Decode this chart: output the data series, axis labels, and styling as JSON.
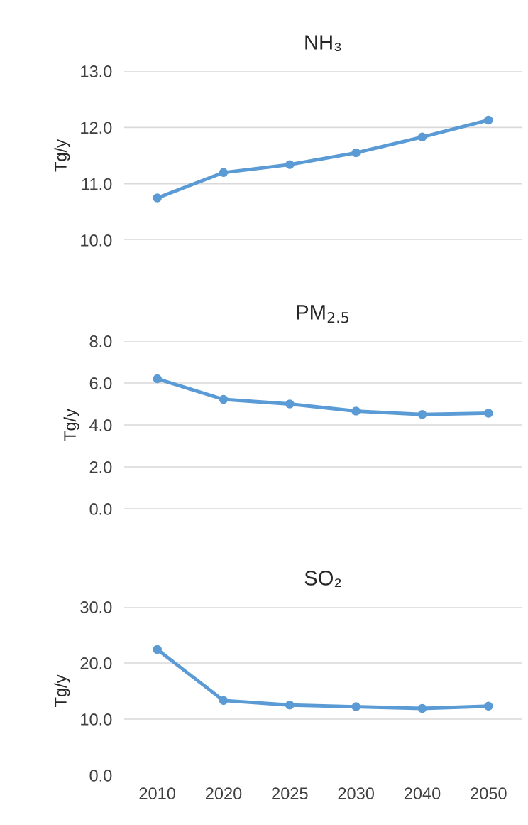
{
  "chart_data": [
    {
      "type": "line",
      "title": "NH₃",
      "ylabel": "Tg/y",
      "categories": [
        "2010",
        "2020",
        "2025",
        "2030",
        "2040",
        "2050"
      ],
      "series": [
        {
          "color": "#5b9bd5",
          "values": [
            10.75,
            11.2,
            11.34,
            11.55,
            11.83,
            12.13
          ]
        }
      ],
      "ylim": [
        10,
        13
      ],
      "yticks": [
        {
          "value": 10,
          "label": "10.0"
        },
        {
          "value": 11,
          "label": "11.0"
        },
        {
          "value": 12,
          "label": "12.0"
        },
        {
          "value": 13,
          "label": "13.0"
        }
      ],
      "grid": "y",
      "marker": "circle",
      "line_style": "solid",
      "tick_labels": "y"
    },
    {
      "type": "line",
      "title": "PM$_{2.5}$",
      "ylabel": "Tg/y",
      "categories": [
        "2010",
        "2020",
        "2025",
        "2030",
        "2040",
        "2050"
      ],
      "series": [
        {
          "color": "#5b9bd5",
          "values": [
            6.2,
            5.22,
            5.0,
            4.66,
            4.5,
            4.56
          ]
        }
      ],
      "ylim": [
        0,
        8
      ],
      "yticks": [
        {
          "value": 0,
          "label": "0.0"
        },
        {
          "value": 2,
          "label": "2.0"
        },
        {
          "value": 4,
          "label": "4.0"
        },
        {
          "value": 6,
          "label": "6.0"
        },
        {
          "value": 8,
          "label": "8.0"
        }
      ],
      "grid": "y",
      "marker": "circle",
      "line_style": "solid",
      "tick_labels": "y"
    },
    {
      "type": "line",
      "title": "SO₂",
      "ylabel": "Tg/y",
      "categories": [
        "2010",
        "2020",
        "2025",
        "2030",
        "2040",
        "2050"
      ],
      "series": [
        {
          "color": "#5b9bd5",
          "values": [
            22.4,
            13.3,
            12.5,
            12.2,
            11.9,
            12.3
          ]
        }
      ],
      "ylim": [
        0,
        30
      ],
      "yticks": [
        {
          "value": 0,
          "label": "0.0"
        },
        {
          "value": 10,
          "label": "10.0"
        },
        {
          "value": 20,
          "label": "20.0"
        },
        {
          "value": 30,
          "label": "30.0"
        }
      ],
      "grid": "y",
      "marker": "circle",
      "line_style": "solid"
    }
  ]
}
